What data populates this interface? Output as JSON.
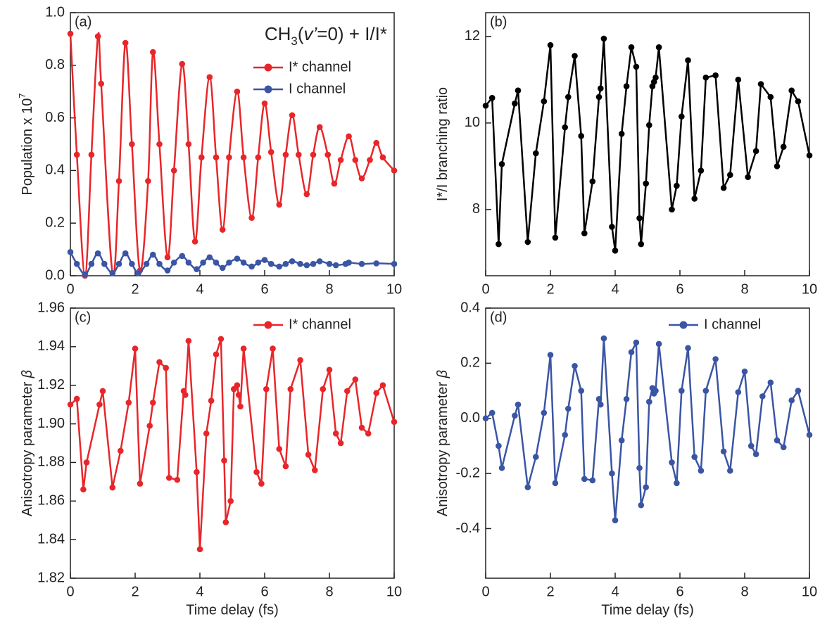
{
  "chart_data": [
    {
      "type": "line",
      "panel_label": "(a)",
      "smooth": true,
      "annotation": [
        {
          "text": "CH"
        },
        {
          "text": "3",
          "sub": true
        },
        {
          "text": "("
        },
        {
          "text": "v’",
          "italic": true
        },
        {
          "text": "=0) + I/I*"
        }
      ],
      "y_label": [
        {
          "text": "Population x 10"
        },
        {
          "text": "7",
          "sup": true
        }
      ],
      "xlim": [
        0,
        10
      ],
      "xticks": [
        0,
        2,
        4,
        6,
        8,
        10
      ],
      "ylim": [
        0,
        1.0
      ],
      "yticks": [
        {
          "value": 0,
          "label": "0.0"
        },
        0.2,
        0.4,
        0.6,
        0.8,
        {
          "value": 1,
          "label": "1.0"
        }
      ],
      "legend": "upper right",
      "series": [
        {
          "name": "I* channel",
          "color": "#e8262a",
          "x": [
            0,
            0.2,
            0.45,
            0.65,
            0.85,
            0.95,
            1.3,
            1.5,
            1.7,
            1.9,
            2.15,
            2.4,
            2.55,
            2.75,
            3.0,
            3.2,
            3.45,
            3.65,
            3.85,
            4.05,
            4.3,
            4.5,
            4.7,
            4.9,
            5.15,
            5.35,
            5.6,
            5.8,
            6.0,
            6.2,
            6.45,
            6.65,
            6.85,
            7.05,
            7.3,
            7.5,
            7.7,
            7.95,
            8.15,
            8.35,
            8.6,
            8.8,
            9.0,
            9.25,
            9.45,
            9.65,
            10
          ],
          "values": [
            0.92,
            0.46,
            0.0,
            0.46,
            0.91,
            0.73,
            0.01,
            0.36,
            0.885,
            0.5,
            0.02,
            0.36,
            0.85,
            0.5,
            0.07,
            0.4,
            0.805,
            0.5,
            0.13,
            0.45,
            0.755,
            0.45,
            0.175,
            0.45,
            0.7,
            0.45,
            0.22,
            0.45,
            0.655,
            0.47,
            0.27,
            0.46,
            0.61,
            0.46,
            0.31,
            0.46,
            0.565,
            0.46,
            0.35,
            0.44,
            0.53,
            0.44,
            0.37,
            0.44,
            0.505,
            0.45,
            0.4
          ]
        },
        {
          "name": "I channel",
          "color": "#3a55a4",
          "x": [
            0,
            0.2,
            0.45,
            0.65,
            0.85,
            1.05,
            1.3,
            1.5,
            1.7,
            1.9,
            2.1,
            2.35,
            2.55,
            2.75,
            3.0,
            3.2,
            3.45,
            3.65,
            3.9,
            4.1,
            4.3,
            4.5,
            4.7,
            4.9,
            5.15,
            5.35,
            5.6,
            5.8,
            6.0,
            6.2,
            6.45,
            6.65,
            6.85,
            7.1,
            7.3,
            7.5,
            7.7,
            8.0,
            8.2,
            8.5,
            8.6,
            9.0,
            9.45,
            10
          ],
          "values": [
            0.09,
            0.045,
            0.005,
            0.045,
            0.085,
            0.045,
            0.01,
            0.045,
            0.085,
            0.045,
            0.01,
            0.045,
            0.08,
            0.045,
            0.02,
            0.05,
            0.075,
            0.05,
            0.025,
            0.05,
            0.07,
            0.05,
            0.03,
            0.05,
            0.065,
            0.05,
            0.035,
            0.05,
            0.06,
            0.045,
            0.035,
            0.045,
            0.055,
            0.045,
            0.04,
            0.045,
            0.055,
            0.045,
            0.04,
            0.045,
            0.05,
            0.045,
            0.047,
            0.045
          ]
        }
      ]
    },
    {
      "type": "line",
      "panel_label": "(b)",
      "y_label": [
        {
          "text": "I*/I branching ratio"
        }
      ],
      "xlim": [
        0,
        10
      ],
      "xticks": [
        0,
        2,
        4,
        6,
        8,
        10
      ],
      "ylim": [
        6.47,
        12.55
      ],
      "yticks": [
        8,
        10,
        12
      ],
      "series": [
        {
          "color": "#000000",
          "x": [
            0,
            0.2,
            0.4,
            0.5,
            0.9,
            1.0,
            1.3,
            1.55,
            1.8,
            2.0,
            2.15,
            2.45,
            2.55,
            2.75,
            2.95,
            3.05,
            3.3,
            3.5,
            3.55,
            3.65,
            3.9,
            4.0,
            4.2,
            4.35,
            4.5,
            4.65,
            4.75,
            4.8,
            4.95,
            5.05,
            5.15,
            5.2,
            5.25,
            5.35,
            5.75,
            5.9,
            6.05,
            6.25,
            6.45,
            6.65,
            6.8,
            7.1,
            7.35,
            7.55,
            7.8,
            8.1,
            8.35,
            8.5,
            8.8,
            9.0,
            9.2,
            9.45,
            9.65,
            10
          ],
          "values": [
            10.4,
            10.58,
            7.2,
            9.05,
            10.45,
            10.75,
            7.25,
            9.3,
            10.5,
            11.8,
            7.35,
            9.9,
            10.6,
            11.55,
            9.7,
            7.45,
            8.65,
            10.6,
            10.8,
            11.95,
            7.6,
            7.05,
            9.75,
            10.85,
            11.75,
            11.3,
            7.8,
            7.2,
            8.6,
            9.95,
            10.85,
            10.95,
            11.05,
            11.75,
            8.0,
            8.55,
            10.15,
            11.45,
            8.25,
            8.9,
            11.05,
            11.1,
            8.5,
            8.8,
            11.0,
            8.75,
            9.35,
            10.9,
            10.6,
            9.0,
            9.45,
            10.75,
            10.5,
            9.25
          ]
        }
      ]
    },
    {
      "type": "line",
      "panel_label": "(c)",
      "y_label": [
        {
          "text": "Anisotropy parameter "
        },
        {
          "text": "β",
          "italic": true
        }
      ],
      "x_label": "Time delay (fs)",
      "xlim": [
        0,
        10
      ],
      "xticks": [
        0,
        2,
        4,
        6,
        8,
        10
      ],
      "ylim": [
        1.82,
        1.96
      ],
      "yticks": [
        1.82,
        1.84,
        1.86,
        1.88,
        {
          "value": 1.9,
          "label": "1.90"
        },
        1.92,
        1.94,
        1.96
      ],
      "legend": "upper right",
      "series": [
        {
          "name": "I* channel",
          "color": "#e8262a",
          "x": [
            0,
            0.2,
            0.4,
            0.5,
            0.9,
            1.0,
            1.3,
            1.55,
            1.8,
            2.0,
            2.15,
            2.45,
            2.55,
            2.75,
            2.95,
            3.05,
            3.3,
            3.5,
            3.55,
            3.65,
            3.9,
            4.0,
            4.2,
            4.35,
            4.5,
            4.65,
            4.75,
            4.8,
            4.95,
            5.05,
            5.15,
            5.2,
            5.25,
            5.35,
            5.75,
            5.9,
            6.05,
            6.25,
            6.45,
            6.65,
            6.8,
            7.1,
            7.35,
            7.55,
            7.8,
            8.0,
            8.2,
            8.35,
            8.55,
            8.8,
            9.0,
            9.2,
            9.45,
            9.65,
            10
          ],
          "values": [
            1.91,
            1.913,
            1.866,
            1.88,
            1.91,
            1.917,
            1.867,
            1.886,
            1.911,
            1.939,
            1.869,
            1.899,
            1.911,
            1.932,
            1.929,
            1.872,
            1.871,
            1.917,
            1.915,
            1.943,
            1.875,
            1.835,
            1.895,
            1.912,
            1.936,
            1.944,
            1.881,
            1.849,
            1.86,
            1.918,
            1.92,
            1.915,
            1.909,
            1.939,
            1.875,
            1.869,
            1.918,
            1.939,
            1.887,
            1.878,
            1.918,
            1.933,
            1.884,
            1.876,
            1.918,
            1.928,
            1.895,
            1.89,
            1.917,
            1.923,
            1.898,
            1.895,
            1.916,
            1.92,
            1.901
          ]
        }
      ]
    },
    {
      "type": "line",
      "panel_label": "(d)",
      "y_label": [
        {
          "text": "Anisotropy parameter "
        },
        {
          "text": "β",
          "italic": true
        }
      ],
      "x_label": "Time delay (fs)",
      "xlim": [
        0,
        10
      ],
      "xticks": [
        0,
        2,
        4,
        6,
        8,
        10
      ],
      "ylim": [
        -0.58,
        0.4
      ],
      "yticks": [
        -0.4,
        -0.2,
        {
          "value": 0,
          "label": "0.0"
        },
        0.2,
        0.4
      ],
      "legend": "upper right",
      "series": [
        {
          "name": "I channel",
          "color": "#3a55a4",
          "x": [
            0,
            0.2,
            0.4,
            0.5,
            0.9,
            1.0,
            1.3,
            1.55,
            1.8,
            2.0,
            2.15,
            2.45,
            2.55,
            2.75,
            2.95,
            3.05,
            3.3,
            3.5,
            3.55,
            3.65,
            3.9,
            4.0,
            4.2,
            4.35,
            4.5,
            4.65,
            4.75,
            4.8,
            4.95,
            5.05,
            5.15,
            5.2,
            5.25,
            5.35,
            5.75,
            5.9,
            6.05,
            6.25,
            6.45,
            6.65,
            6.8,
            7.1,
            7.35,
            7.55,
            7.8,
            8.0,
            8.2,
            8.35,
            8.55,
            8.8,
            9.0,
            9.2,
            9.45,
            9.65,
            10
          ],
          "values": [
            0,
            0.02,
            -0.1,
            -0.18,
            0.01,
            0.05,
            -0.25,
            -0.14,
            0.02,
            0.23,
            -0.235,
            -0.06,
            0.035,
            0.19,
            0.1,
            -0.22,
            -0.225,
            0.07,
            0.05,
            0.29,
            -0.2,
            -0.37,
            -0.08,
            0.07,
            0.24,
            0.275,
            -0.18,
            -0.315,
            -0.25,
            0.06,
            0.11,
            0.09,
            0.1,
            0.27,
            -0.16,
            -0.235,
            0.1,
            0.255,
            -0.14,
            -0.19,
            0.1,
            0.215,
            -0.12,
            -0.19,
            0.095,
            0.17,
            -0.1,
            -0.13,
            0.08,
            0.13,
            -0.08,
            -0.105,
            0.065,
            0.1,
            -0.06
          ]
        }
      ]
    }
  ]
}
